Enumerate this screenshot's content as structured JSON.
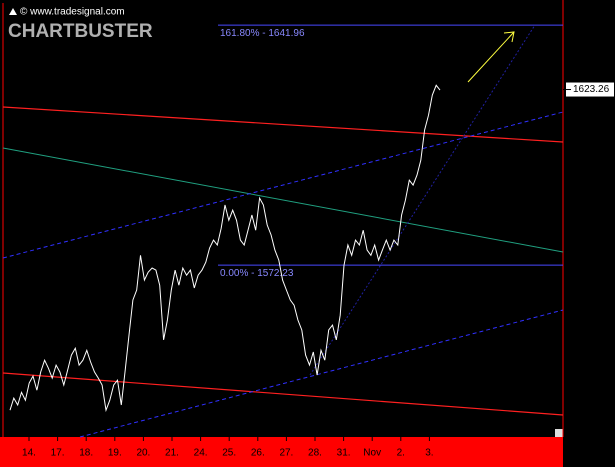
{
  "header": {
    "copyright": "© www.tradesignal.com",
    "brand": "CHARTBUSTER"
  },
  "chart_data": {
    "type": "line",
    "series": [
      {
        "color": "#ffffff",
        "values": [
          1530.1,
          1533.6,
          1531.6,
          1535.3,
          1533.0,
          1538.0,
          1540.0,
          1535.9,
          1541.2,
          1544.6,
          1542.3,
          1539.4,
          1543.2,
          1541.2,
          1537.4,
          1541.7,
          1546.1,
          1548.1,
          1543.2,
          1544.6,
          1547.5,
          1544.1,
          1541.2,
          1539.4,
          1537.4,
          1530.1,
          1533.0,
          1537.4,
          1538.8,
          1531.6,
          1541.7,
          1551.9,
          1562.1,
          1565.0,
          1575.1,
          1567.9,
          1570.2,
          1571.4,
          1570.8,
          1566.4,
          1550.5,
          1556.3,
          1565.0,
          1570.8,
          1566.4,
          1571.4,
          1569.3,
          1570.8,
          1565.6,
          1569.3,
          1570.8,
          1573.1,
          1577.2,
          1579.5,
          1578.1,
          1583.0,
          1589.7,
          1585.3,
          1588.2,
          1585.3,
          1579.5,
          1578.1,
          1582.4,
          1586.8,
          1582.4,
          1591.7,
          1589.7,
          1583.9,
          1581.0,
          1576.6,
          1573.7,
          1567.9,
          1565.0,
          1562.1,
          1560.6,
          1556.3,
          1553.4,
          1546.1,
          1543.2,
          1547.0,
          1540.3,
          1547.5,
          1544.6,
          1553.4,
          1554.8,
          1550.5,
          1557.7,
          1572.2,
          1578.1,
          1575.1,
          1579.5,
          1578.1,
          1582.4,
          1576.6,
          1575.1,
          1578.1,
          1573.7,
          1576.6,
          1579.5,
          1576.6,
          1579.5,
          1578.1,
          1586.8,
          1591.1,
          1596.9,
          1595.5,
          1598.4,
          1602.7,
          1611.5,
          1615.8,
          1621.6,
          1624.5,
          1623.1
        ]
      }
    ],
    "ylim": [
      1522.3,
      1648.4
    ],
    "x_labels": [
      "14.",
      "17.",
      "18.",
      "19.",
      "20.",
      "21.",
      "24.",
      "25.",
      "26.",
      "27.",
      "28.",
      "31.",
      "Nov",
      "2.",
      "3."
    ],
    "levels": [
      {
        "value": 1641.96,
        "label": "161.80% - 1641.96"
      },
      {
        "value": 1572.23,
        "label": "0.00% - 1572.23"
      }
    ],
    "last_value": 1623.26
  }
}
